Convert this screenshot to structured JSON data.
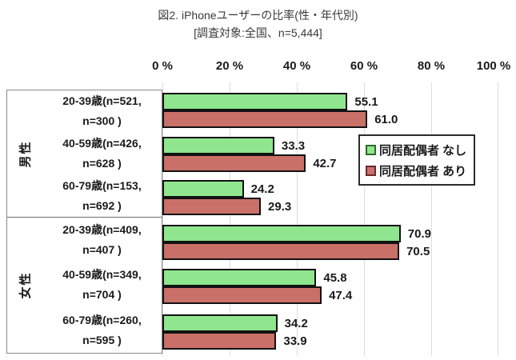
{
  "title": "図2. iPhoneユーザーの比率(性・年代別)",
  "subtitle": "[調査対象:全国、n=5,444]",
  "x_axis": {
    "ticks": [
      "0 %",
      "20 %",
      "40 %",
      "60 %",
      "80 %",
      "100 %"
    ]
  },
  "legend": {
    "items": [
      {
        "label": "同居配偶者 なし",
        "color": "#90e68e"
      },
      {
        "label": "同居配偶者 あり",
        "color": "#c97068"
      }
    ]
  },
  "colors": {
    "bar_nashi": "#90e68e",
    "bar_ari": "#c97068",
    "bar_border": "#121212",
    "gridline": "#d8dee3"
  },
  "chart_data": {
    "type": "bar",
    "orientation": "horizontal",
    "title": "図2. iPhoneユーザーの比率(性・年代別)",
    "subtitle": "[調査対象:全国、n=5,444]",
    "xlim": [
      0,
      100
    ],
    "x_ticks_percent": [
      0,
      20,
      40,
      60,
      80,
      100
    ],
    "grid": "vertical",
    "legend_position": "inside-right",
    "series": [
      {
        "name": "同居配偶者 なし",
        "color": "#90e68e",
        "values": [
          55.1,
          33.3,
          24.2,
          70.9,
          45.8,
          34.2
        ]
      },
      {
        "name": "同居配偶者 あり",
        "color": "#c97068",
        "values": [
          61.0,
          42.7,
          29.3,
          70.5,
          47.4,
          33.9
        ]
      }
    ],
    "groups": [
      {
        "gender": "男性",
        "rows": [
          {
            "age_line1": "20-39歳(n=521,",
            "age_line2": "n=300 )",
            "nashi": 55.1,
            "ari": 61.0,
            "nashi_text": "55.1",
            "ari_text": "61.0"
          },
          {
            "age_line1": "40-59歳(n=426,",
            "age_line2": "n=628 )",
            "nashi": 33.3,
            "ari": 42.7,
            "nashi_text": "33.3",
            "ari_text": "42.7"
          },
          {
            "age_line1": "60-79歳(n=153,",
            "age_line2": "n=692 )",
            "nashi": 24.2,
            "ari": 29.3,
            "nashi_text": "24.2",
            "ari_text": "29.3"
          }
        ]
      },
      {
        "gender": "女性",
        "rows": [
          {
            "age_line1": "20-39歳(n=409,",
            "age_line2": "n=407 )",
            "nashi": 70.9,
            "ari": 70.5,
            "nashi_text": "70.9",
            "ari_text": "70.5"
          },
          {
            "age_line1": "40-59歳(n=349,",
            "age_line2": "n=704 )",
            "nashi": 45.8,
            "ari": 47.4,
            "nashi_text": "45.8",
            "ari_text": "47.4"
          },
          {
            "age_line1": "60-79歳(n=260,",
            "age_line2": "n=595 )",
            "nashi": 34.2,
            "ari": 33.9,
            "nashi_text": "34.2",
            "ari_text": "33.9"
          }
        ]
      }
    ]
  }
}
